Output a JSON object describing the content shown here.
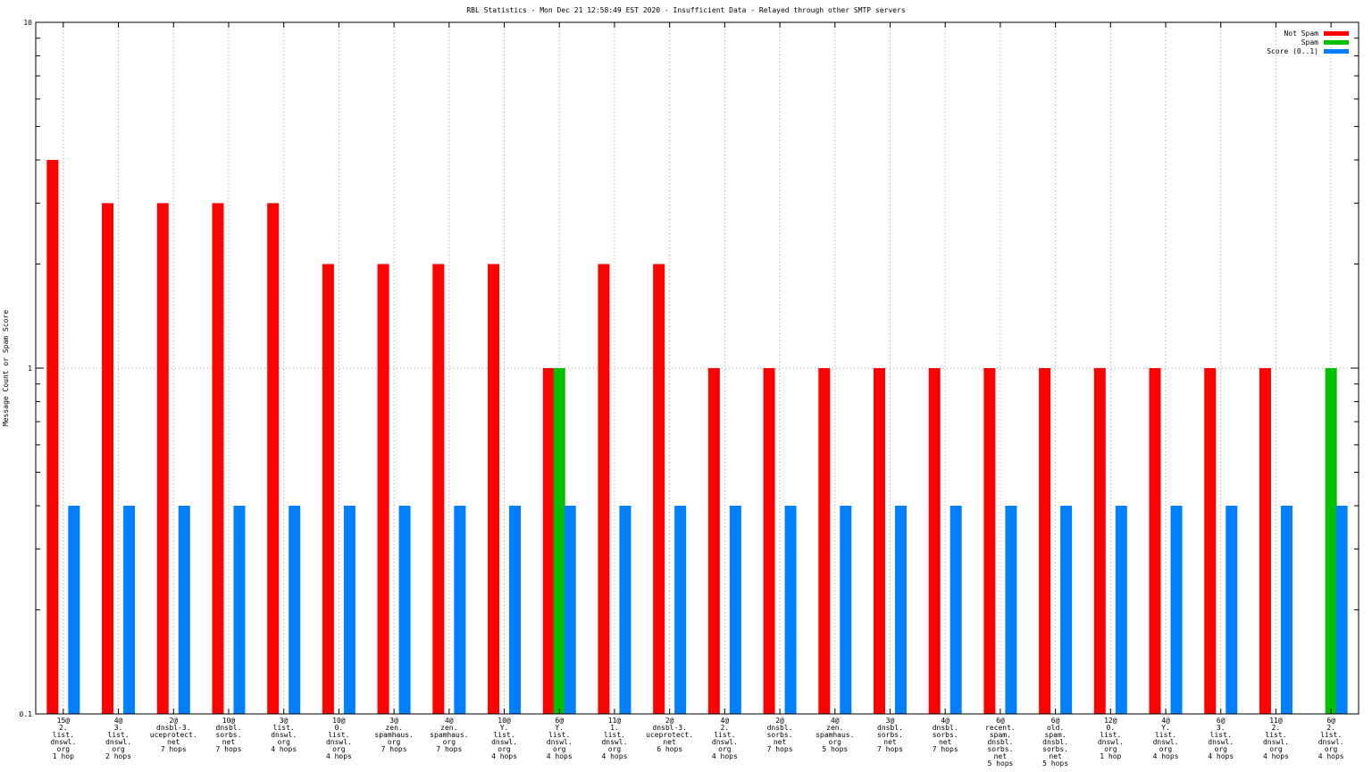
{
  "chart_data": {
    "type": "bar",
    "title": "RBL Statistics - Mon Dec 21 12:58:49 EST 2020 - Insufficient Data - Relayed through other SMTP servers",
    "ylabel": "Message Count or Spam Score",
    "xlabel": "",
    "yscale": "log",
    "ylim": [
      0.1,
      10
    ],
    "yticks": [
      "0.1",
      "1",
      "10"
    ],
    "grid": true,
    "legend_position": "top-right",
    "colors": {
      "not_spam": "#ff0000",
      "spam": "#00c000",
      "score": "#0080ff"
    },
    "categories": [
      [
        "15@",
        "2.",
        "list.",
        "dnswl.",
        "org",
        "1 hop"
      ],
      [
        "4@",
        "3.",
        "list.",
        "dnswl.",
        "org",
        "2 hops"
      ],
      [
        "2@",
        "dnsbl-3.",
        "uceprotect.",
        "net",
        "7 hops"
      ],
      [
        "10@",
        "dnsbl.",
        "sorbs.",
        "net",
        "7 hops"
      ],
      [
        "3@",
        "list.",
        "dnswl.",
        "org",
        "4 hops"
      ],
      [
        "10@",
        "0.",
        "list.",
        "dnswl.",
        "org",
        "4 hops"
      ],
      [
        "3@",
        "zen.",
        "spamhaus.",
        "org",
        "7 hops"
      ],
      [
        "4@",
        "zen.",
        "spamhaus.",
        "org",
        "7 hops"
      ],
      [
        "10@",
        "Y.",
        "list.",
        "dnswl.",
        "org",
        "4 hops"
      ],
      [
        "6@",
        "Y.",
        "list.",
        "dnswl.",
        "org",
        "4 hops"
      ],
      [
        "11@",
        "1.",
        "list.",
        "dnswl.",
        "org",
        "4 hops"
      ],
      [
        "2@",
        "dnsbl-3.",
        "uceprotect.",
        "net",
        "6 hops"
      ],
      [
        "4@",
        "2.",
        "list.",
        "dnswl.",
        "org",
        "4 hops"
      ],
      [
        "2@",
        "dnsbl.",
        "sorbs.",
        "net",
        "7 hops"
      ],
      [
        "4@",
        "zen.",
        "spamhaus.",
        "org",
        "5 hops"
      ],
      [
        "3@",
        "dnsbl.",
        "sorbs.",
        "net",
        "7 hops"
      ],
      [
        "4@",
        "dnsbl.",
        "sorbs.",
        "net",
        "7 hops"
      ],
      [
        "6@",
        "recent.",
        "spam.",
        "dnsbl.",
        "sorbs.",
        "net",
        "5 hops"
      ],
      [
        "6@",
        "old.",
        "spam.",
        "dnsbl.",
        "sorbs.",
        "net",
        "5 hops"
      ],
      [
        "12@",
        "0.",
        "list.",
        "dnswl.",
        "org",
        "1 hop"
      ],
      [
        "4@",
        "Y.",
        "list.",
        "dnswl.",
        "org",
        "4 hops"
      ],
      [
        "6@",
        "3.",
        "list.",
        "dnswl.",
        "org",
        "4 hops"
      ],
      [
        "11@",
        "2.",
        "list.",
        "dnswl.",
        "org",
        "4 hops"
      ],
      [
        "6@",
        "2.",
        "list.",
        "dnswl.",
        "org",
        "4 hops"
      ]
    ],
    "series": [
      {
        "name": "Not Spam",
        "values": [
          4,
          3,
          3,
          3,
          3,
          2,
          2,
          2,
          2,
          1,
          2,
          2,
          1,
          1,
          1,
          1,
          1,
          1,
          1,
          1,
          1,
          1,
          1,
          0
        ]
      },
      {
        "name": "Spam",
        "values": [
          0,
          0,
          0,
          0,
          0,
          0,
          0,
          0,
          0,
          1,
          0,
          0,
          0,
          0,
          0,
          0,
          0,
          0,
          0,
          0,
          0,
          0,
          0,
          1
        ]
      },
      {
        "name": "Score (0..1)",
        "values": [
          0.4,
          0.4,
          0.4,
          0.4,
          0.4,
          0.4,
          0.4,
          0.4,
          0.4,
          0.4,
          0.4,
          0.4,
          0.4,
          0.4,
          0.4,
          0.4,
          0.4,
          0.4,
          0.4,
          0.4,
          0.4,
          0.4,
          0.4,
          0.4
        ]
      }
    ]
  }
}
